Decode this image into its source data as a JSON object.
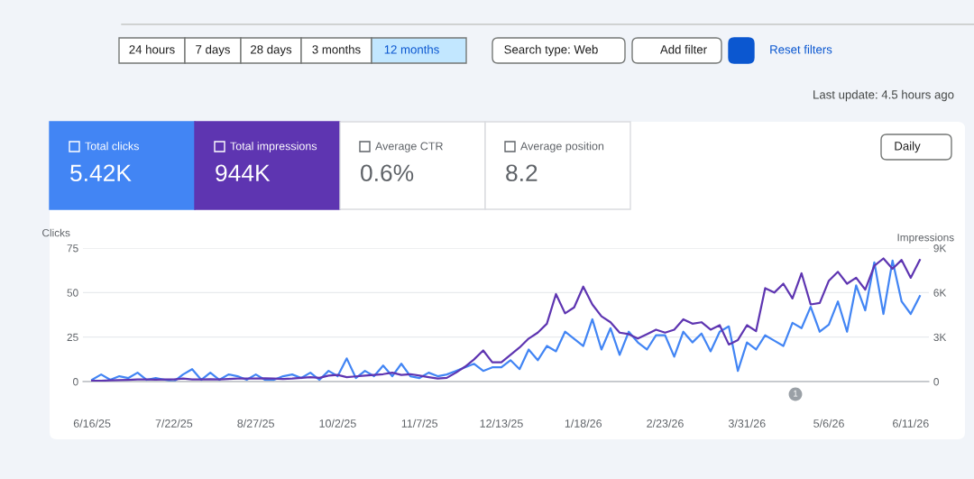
{
  "chart_data": [
    {
      "type": "other",
      "annotations": [
        "24 hours",
        "7 days",
        "28 days",
        "3 months",
        "12 months",
        "Search type: Web",
        "Add filter",
        "Reset filters",
        "Last update: 4.5 hours ago",
        "Total clicks",
        "5.42K",
        "Total impressions",
        "944K",
        "Average CTR",
        "0.6%",
        "Average position",
        "8.2",
        "Daily"
      ]
    },
    {
      "type": "line",
      "ylabel": "Clicks",
      "y2label": "Impressions",
      "grid": "y",
      "legend": false,
      "marker": "none",
      "line_style": "solid",
      "x": [
        "2025-06-16",
        "2025-06-20",
        "2025-06-24",
        "2025-06-28",
        "2025-07-02",
        "2025-07-06",
        "2025-07-10",
        "2025-07-14",
        "2025-07-18",
        "2025-07-22",
        "2025-07-26",
        "2025-07-30",
        "2025-08-03",
        "2025-08-07",
        "2025-08-11",
        "2025-08-15",
        "2025-08-19",
        "2025-08-23",
        "2025-08-27",
        "2025-08-31",
        "2025-09-04",
        "2025-09-08",
        "2025-09-12",
        "2025-09-16",
        "2025-09-20",
        "2025-09-24",
        "2025-09-28",
        "2025-10-02",
        "2025-10-06",
        "2025-10-10",
        "2025-10-14",
        "2025-10-18",
        "2025-10-22",
        "2025-10-26",
        "2025-10-30",
        "2025-11-03",
        "2025-11-07",
        "2025-11-11",
        "2025-11-15",
        "2025-11-19",
        "2025-11-23",
        "2025-11-27",
        "2025-12-01",
        "2025-12-05",
        "2025-12-09",
        "2025-12-13",
        "2025-12-17",
        "2025-12-21",
        "2025-12-25",
        "2025-12-29",
        "2026-01-02",
        "2026-01-06",
        "2026-01-10",
        "2026-01-14",
        "2026-01-18",
        "2026-01-22",
        "2026-01-26",
        "2026-01-30",
        "2026-02-03",
        "2026-02-07",
        "2026-02-11",
        "2026-02-15",
        "2026-02-19",
        "2026-02-23",
        "2026-02-27",
        "2026-03-03",
        "2026-03-07",
        "2026-03-11",
        "2026-03-15",
        "2026-03-19",
        "2026-03-23",
        "2026-03-27",
        "2026-03-31",
        "2026-04-04",
        "2026-04-08",
        "2026-04-12",
        "2026-04-16",
        "2026-04-20",
        "2026-04-24",
        "2026-04-28",
        "2026-05-02",
        "2026-05-06",
        "2026-05-10",
        "2026-05-14",
        "2026-05-18",
        "2026-05-22",
        "2026-05-26",
        "2026-05-30",
        "2026-06-03",
        "2026-06-07",
        "2026-06-11",
        "2026-06-15"
      ],
      "series": [
        {
          "color": "#4285f4",
          "values": [
            1,
            4,
            1,
            3,
            2,
            5,
            1,
            2,
            1,
            0,
            4,
            7,
            1,
            5,
            1,
            4,
            3,
            1,
            4,
            1,
            1,
            3,
            4,
            2,
            5,
            1,
            6,
            3,
            13,
            2,
            6,
            3,
            9,
            3,
            10,
            3,
            2,
            5,
            3,
            4,
            6,
            8,
            10,
            6,
            8,
            8,
            12,
            7,
            18,
            12,
            20,
            17,
            28,
            24,
            20,
            35,
            18,
            30,
            15,
            28,
            22,
            18,
            26,
            26,
            14,
            28,
            22,
            27,
            17,
            28,
            31,
            6,
            22,
            18,
            26,
            23,
            20,
            33,
            30,
            42,
            28,
            32,
            45,
            28,
            54,
            40,
            67,
            38,
            68,
            45,
            38,
            48
          ]
        },
        {
          "color": "#5e35b1",
          "axis": "y2",
          "values": [
            50,
            60,
            80,
            100,
            120,
            150,
            150,
            130,
            150,
            150,
            200,
            150,
            150,
            160,
            150,
            180,
            200,
            200,
            200,
            220,
            200,
            180,
            200,
            250,
            300,
            250,
            400,
            450,
            300,
            350,
            400,
            450,
            500,
            600,
            450,
            500,
            400,
            300,
            200,
            250,
            600,
            1000,
            1500,
            2100,
            1300,
            1300,
            1800,
            2300,
            2900,
            3300,
            3900,
            5900,
            4600,
            5000,
            6400,
            5200,
            4400,
            4000,
            3300,
            3200,
            2900,
            3200,
            3500,
            3300,
            3500,
            4200,
            3900,
            4000,
            3500,
            3800,
            2500,
            2800,
            3800,
            3400,
            6300,
            6000,
            6600,
            5600,
            7300,
            5200,
            5300,
            6800,
            7400,
            6600,
            7000,
            6200,
            7800,
            8300,
            7600,
            8200,
            7000,
            8200
          ]
        }
      ],
      "xlim": [
        "2025-06-12",
        "2026-06-19"
      ],
      "xticks": [
        {
          "value": "2025-06-16",
          "label": "6/16/25"
        },
        {
          "value": "2025-07-22",
          "label": "7/22/25"
        },
        {
          "value": "2025-08-27",
          "label": "8/27/25"
        },
        {
          "value": "2025-10-02",
          "label": "10/2/25"
        },
        {
          "value": "2025-11-07",
          "label": "11/7/25"
        },
        {
          "value": "2025-12-13",
          "label": "12/13/25"
        },
        {
          "value": "2026-01-18",
          "label": "1/18/26"
        },
        {
          "value": "2026-02-23",
          "label": "2/23/26"
        },
        {
          "value": "2026-03-31",
          "label": "3/31/26"
        },
        {
          "value": "2026-05-06",
          "label": "5/6/26"
        },
        {
          "value": "2026-06-11",
          "label": "6/11/26"
        }
      ],
      "ylim": [
        0,
        75
      ],
      "yticks": [
        0,
        25,
        50,
        75
      ],
      "y2lim": [
        0,
        9000
      ],
      "y2ticks": [
        {
          "value": 0,
          "label": "0"
        },
        {
          "value": 3000,
          "label": "3K"
        },
        {
          "value": 6000,
          "label": "6K"
        },
        {
          "value": 9000,
          "label": "9K"
        }
      ],
      "annotations": [
        "1"
      ]
    }
  ]
}
